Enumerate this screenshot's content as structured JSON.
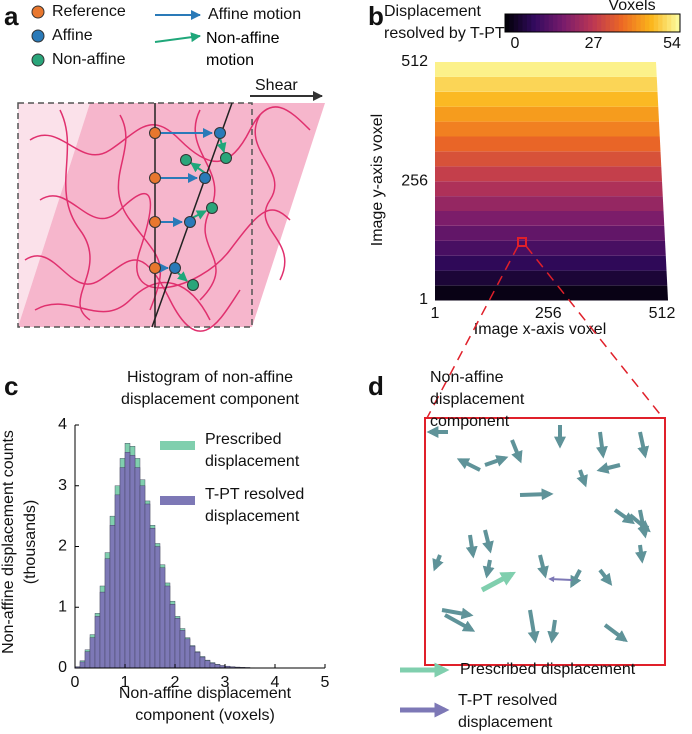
{
  "panel_labels": [
    "a",
    "b",
    "c",
    "d"
  ],
  "diagram_a": {
    "legend": [
      "Reference",
      "Affine",
      "Non-affine"
    ],
    "motion_legend": [
      "Affine motion",
      "Non-affine motion"
    ],
    "shear_label": "Shear"
  },
  "chart_data": [
    {
      "type": "heatmap",
      "title": "Displacement resolved by T-PT",
      "xlabel": "Image x-axis voxel",
      "ylabel": "Image y-axis voxel",
      "xlim": [
        1,
        512
      ],
      "ylim": [
        1,
        512
      ],
      "xticks": [
        1,
        256,
        512
      ],
      "yticks": [
        1,
        256,
        512
      ],
      "y": [
        16,
        48,
        80,
        112,
        144,
        176,
        208,
        240,
        272,
        304,
        336,
        368,
        400,
        432,
        464,
        496
      ],
      "values": [
        1.7,
        5.1,
        8.4,
        11.8,
        15.2,
        18.6,
        21.9,
        25.3,
        28.7,
        32.1,
        35.4,
        38.8,
        42.2,
        45.6,
        48.9,
        52.3
      ],
      "colorbar": {
        "title": "Voxels",
        "lim": [
          0,
          54
        ],
        "ticks": [
          0,
          27,
          54
        ],
        "colors": [
          "#000004",
          "#320a5e",
          "#781b6c",
          "#bb3654",
          "#ec6824",
          "#fbb41a",
          "#fcffa4"
        ]
      }
    },
    {
      "type": "histogram",
      "title": "Histogram of non-affine displacement component",
      "xlabel": "Non-affine displacement component (voxels)",
      "ylabel": "Non-affine displacement counts (thousands)",
      "xlim": [
        0,
        5
      ],
      "ylim": [
        0,
        4
      ],
      "xticks": [
        0,
        1,
        2,
        3,
        4,
        5
      ],
      "yticks": [
        0,
        1,
        2,
        3,
        4
      ],
      "bins": [
        0,
        0.1,
        0.2,
        0.3,
        0.4,
        0.5,
        0.6,
        0.7,
        0.8,
        0.9,
        1,
        1.1,
        1.2,
        1.3,
        1.4,
        1.5,
        1.6,
        1.7,
        1.8,
        1.9,
        2,
        2.1,
        2.2,
        2.3,
        2.4,
        2.5,
        2.6,
        2.7,
        2.8,
        2.9,
        3,
        3.1,
        3.2,
        3.3,
        3.4,
        3.5,
        3.6,
        3.7,
        3.8,
        3.9,
        4,
        4.1,
        4.2,
        4.3,
        4.4,
        4.5,
        4.6,
        4.7,
        4.8,
        4.9,
        5
      ],
      "series": [
        {
          "name": "Prescribed displacement",
          "color": "#80cfae",
          "values": [
            0.02,
            0.12,
            0.3,
            0.55,
            0.9,
            1.35,
            1.9,
            2.5,
            3.0,
            3.45,
            3.7,
            3.65,
            3.45,
            3.1,
            2.75,
            2.35,
            2.05,
            1.7,
            1.4,
            1.1,
            0.85,
            0.65,
            0.5,
            0.37,
            0.27,
            0.19,
            0.13,
            0.09,
            0.06,
            0.04,
            0.03,
            0.02,
            0.015,
            0.01,
            0.008,
            0.005,
            0.004,
            0.003,
            0.002,
            0.002,
            0.001,
            0.001,
            0.001,
            0.001,
            0,
            0,
            0,
            0,
            0,
            0
          ]
        },
        {
          "name": "T-PT resolved displacement",
          "color": "#7d78b6",
          "values": [
            0.02,
            0.1,
            0.27,
            0.5,
            0.85,
            1.25,
            1.8,
            2.35,
            2.85,
            3.3,
            3.55,
            3.5,
            3.3,
            3.0,
            2.7,
            2.3,
            2.0,
            1.65,
            1.35,
            1.05,
            0.82,
            0.62,
            0.48,
            0.36,
            0.26,
            0.18,
            0.12,
            0.08,
            0.055,
            0.04,
            0.03,
            0.02,
            0.014,
            0.01,
            0.007,
            0.005,
            0.004,
            0.003,
            0.002,
            0.002,
            0.001,
            0.001,
            0.001,
            0.001,
            0,
            0,
            0,
            0,
            0,
            0
          ]
        }
      ]
    }
  ],
  "diagram_d": {
    "title": "Non-affine displacement component",
    "legend": [
      "Prescribed displacement",
      "T-PT resolved displacement"
    ]
  }
}
